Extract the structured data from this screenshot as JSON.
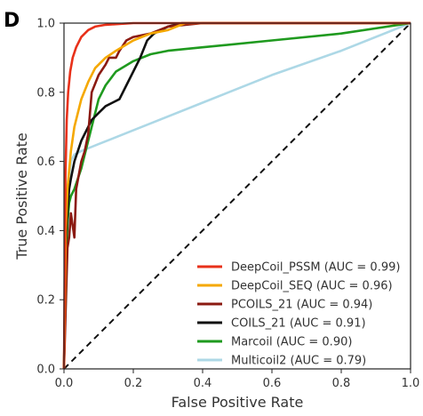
{
  "panel_letter": "D",
  "chart_data": {
    "type": "line",
    "title": "",
    "xlabel": "False Positive Rate",
    "ylabel": "True Positive Rate",
    "xlim": [
      0.0,
      1.0
    ],
    "ylim": [
      0.0,
      1.0
    ],
    "x_ticks": [
      "0.0",
      "0.2",
      "0.4",
      "0.6",
      "0.8",
      "1.0"
    ],
    "y_ticks": [
      "0.0",
      "0.2",
      "0.4",
      "0.6",
      "0.8",
      "1.0"
    ],
    "grid": false,
    "legend_position": "lower-right",
    "series": [
      {
        "name": "DeepCoil_PSSM (AUC = 0.99)",
        "color": "#e8311a",
        "x": [
          0.0,
          0.004,
          0.008,
          0.012,
          0.018,
          0.025,
          0.035,
          0.05,
          0.07,
          0.09,
          0.12,
          0.15,
          0.2,
          0.3,
          0.45,
          1.0
        ],
        "y": [
          0.0,
          0.55,
          0.72,
          0.8,
          0.86,
          0.9,
          0.93,
          0.96,
          0.98,
          0.99,
          0.995,
          0.997,
          1.0,
          1.0,
          1.0,
          1.0
        ]
      },
      {
        "name": "DeepCoil_SEQ (AUC = 0.96)",
        "color": "#f5a800",
        "x": [
          0.0,
          0.005,
          0.01,
          0.02,
          0.03,
          0.05,
          0.07,
          0.09,
          0.12,
          0.15,
          0.2,
          0.25,
          0.3,
          0.35,
          0.5,
          1.0
        ],
        "y": [
          0.0,
          0.4,
          0.52,
          0.63,
          0.7,
          0.78,
          0.83,
          0.87,
          0.9,
          0.92,
          0.95,
          0.97,
          0.98,
          1.0,
          1.0,
          1.0
        ]
      },
      {
        "name": "PCOILS_21 (AUC = 0.94)",
        "color": "#8b1a12",
        "x": [
          0.0,
          0.01,
          0.015,
          0.02,
          0.03,
          0.035,
          0.05,
          0.06,
          0.07,
          0.08,
          0.1,
          0.12,
          0.13,
          0.15,
          0.16,
          0.18,
          0.2,
          0.25,
          0.3,
          0.4,
          1.0
        ],
        "y": [
          0.0,
          0.35,
          0.38,
          0.45,
          0.38,
          0.52,
          0.6,
          0.63,
          0.68,
          0.8,
          0.85,
          0.88,
          0.9,
          0.9,
          0.92,
          0.95,
          0.96,
          0.97,
          0.99,
          1.0,
          1.0
        ]
      },
      {
        "name": "COILS_21 (AUC = 0.91)",
        "color": "#111111",
        "x": [
          0.0,
          0.005,
          0.01,
          0.015,
          0.02,
          0.03,
          0.04,
          0.05,
          0.06,
          0.07,
          0.08,
          0.1,
          0.12,
          0.14,
          0.16,
          0.18,
          0.2,
          0.22,
          0.24,
          0.26,
          0.3,
          0.34,
          0.4,
          1.0
        ],
        "y": [
          0.0,
          0.36,
          0.45,
          0.52,
          0.55,
          0.6,
          0.63,
          0.66,
          0.68,
          0.7,
          0.72,
          0.74,
          0.76,
          0.77,
          0.78,
          0.82,
          0.86,
          0.9,
          0.95,
          0.97,
          0.99,
          1.0,
          1.0,
          1.0
        ]
      },
      {
        "name": "Marcoil (AUC = 0.90)",
        "color": "#1f9a1f",
        "x": [
          0.0,
          0.005,
          0.01,
          0.015,
          0.02,
          0.03,
          0.04,
          0.05,
          0.06,
          0.08,
          0.1,
          0.12,
          0.15,
          0.2,
          0.25,
          0.3,
          0.4,
          0.6,
          0.8,
          1.0
        ],
        "y": [
          0.0,
          0.3,
          0.42,
          0.48,
          0.5,
          0.52,
          0.55,
          0.58,
          0.62,
          0.7,
          0.78,
          0.82,
          0.86,
          0.89,
          0.91,
          0.92,
          0.93,
          0.95,
          0.97,
          1.0
        ]
      },
      {
        "name": "Multicoil2 (AUC = 0.79)",
        "color": "#add8e6",
        "x": [
          0.0,
          0.005,
          0.01,
          0.015,
          0.02,
          0.03,
          0.05,
          0.1,
          0.2,
          0.4,
          0.6,
          0.8,
          1.0
        ],
        "y": [
          0.0,
          0.3,
          0.48,
          0.55,
          0.6,
          0.62,
          0.63,
          0.65,
          0.69,
          0.77,
          0.85,
          0.92,
          1.0
        ]
      }
    ],
    "diagonal": {
      "style": "dashed",
      "color": "#111111"
    }
  }
}
